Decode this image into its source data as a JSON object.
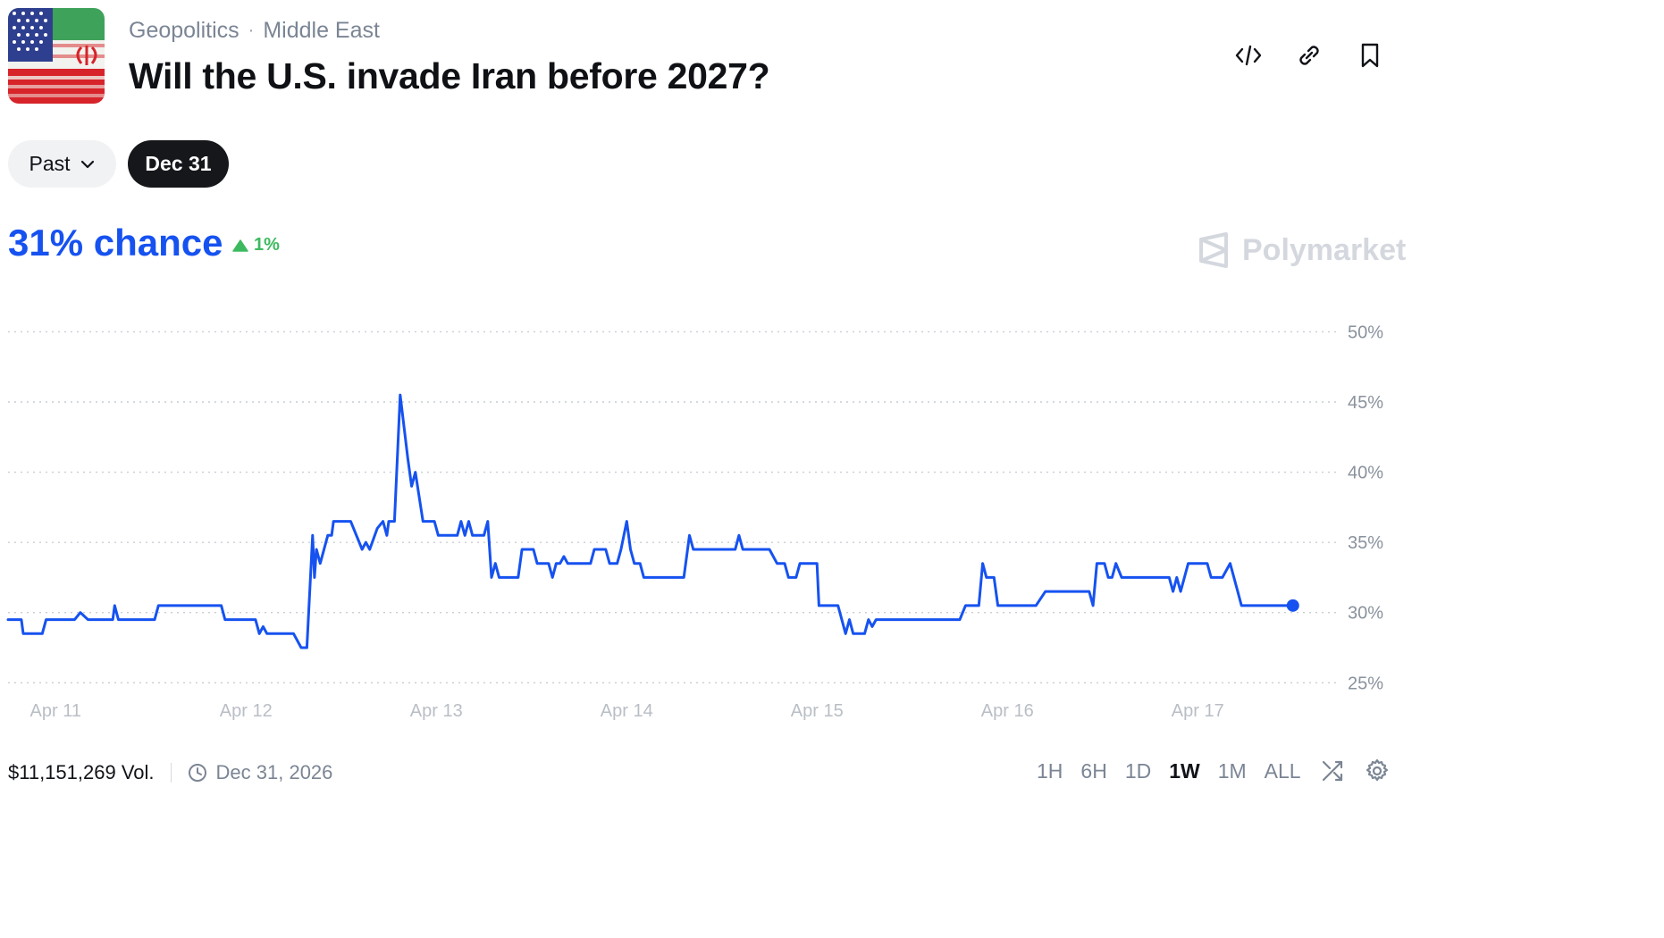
{
  "header": {
    "breadcrumb": [
      "Geopolitics",
      "Middle East"
    ],
    "breadcrumb_separator": "·",
    "title": "Will the U.S. invade Iran before 2027?"
  },
  "actions": [
    {
      "name": "embed-icon"
    },
    {
      "name": "link-icon"
    },
    {
      "name": "bookmark-icon"
    }
  ],
  "filters": {
    "past_label": "Past",
    "date_label": "Dec 31"
  },
  "summary": {
    "chance_text": "31% chance",
    "delta_text": "1%",
    "delta_color": "#3dba5f",
    "accent_color": "#1652f0"
  },
  "brand": {
    "name": "Polymarket"
  },
  "footer": {
    "volume": "$11,151,269 Vol.",
    "end_date": "Dec 31, 2026",
    "ranges": [
      "1H",
      "6H",
      "1D",
      "1W",
      "1M",
      "ALL"
    ],
    "active_range": "1W"
  },
  "chart_data": {
    "type": "line",
    "series": [
      {
        "color": "#1652f0",
        "points": [
          [
            11.0,
            29.5
          ],
          [
            11.07,
            29.5
          ],
          [
            11.08,
            28.5
          ],
          [
            11.18,
            28.5
          ],
          [
            11.2,
            29.5
          ],
          [
            11.35,
            29.5
          ],
          [
            11.38,
            30.0
          ],
          [
            11.42,
            29.5
          ],
          [
            11.55,
            29.5
          ],
          [
            11.56,
            30.5
          ],
          [
            11.58,
            29.5
          ],
          [
            11.77,
            29.5
          ],
          [
            11.79,
            30.5
          ],
          [
            12.0,
            30.5
          ],
          [
            12.12,
            30.5
          ],
          [
            12.14,
            29.5
          ],
          [
            12.3,
            29.5
          ],
          [
            12.32,
            28.5
          ],
          [
            12.34,
            29.0
          ],
          [
            12.36,
            28.5
          ],
          [
            12.5,
            28.5
          ],
          [
            12.54,
            27.5
          ],
          [
            12.57,
            27.5
          ],
          [
            12.6,
            35.5
          ],
          [
            12.61,
            32.5
          ],
          [
            12.62,
            34.5
          ],
          [
            12.64,
            33.5
          ],
          [
            12.68,
            35.5
          ],
          [
            12.7,
            35.5
          ],
          [
            12.71,
            36.5
          ],
          [
            12.8,
            36.5
          ],
          [
            12.86,
            34.5
          ],
          [
            12.88,
            35.0
          ],
          [
            12.9,
            34.5
          ],
          [
            12.94,
            36.0
          ],
          [
            12.97,
            36.5
          ],
          [
            12.99,
            35.5
          ],
          [
            13.0,
            36.5
          ],
          [
            13.03,
            36.5
          ],
          [
            13.06,
            45.5
          ],
          [
            13.1,
            41.0
          ],
          [
            13.12,
            39.0
          ],
          [
            13.14,
            40.0
          ],
          [
            13.18,
            36.5
          ],
          [
            13.24,
            36.5
          ],
          [
            13.26,
            35.5
          ],
          [
            13.36,
            35.5
          ],
          [
            13.38,
            36.5
          ],
          [
            13.4,
            35.5
          ],
          [
            13.42,
            36.5
          ],
          [
            13.44,
            35.5
          ],
          [
            13.5,
            35.5
          ],
          [
            13.52,
            36.5
          ],
          [
            13.54,
            32.5
          ],
          [
            13.56,
            33.5
          ],
          [
            13.58,
            32.5
          ],
          [
            13.68,
            32.5
          ],
          [
            13.7,
            34.5
          ],
          [
            13.76,
            34.5
          ],
          [
            13.78,
            33.5
          ],
          [
            13.84,
            33.5
          ],
          [
            13.86,
            32.5
          ],
          [
            13.88,
            33.5
          ],
          [
            13.9,
            33.5
          ],
          [
            13.92,
            34.0
          ],
          [
            13.94,
            33.5
          ],
          [
            14.06,
            33.5
          ],
          [
            14.08,
            34.5
          ],
          [
            14.14,
            34.5
          ],
          [
            14.16,
            33.5
          ],
          [
            14.2,
            33.5
          ],
          [
            14.22,
            34.5
          ],
          [
            14.25,
            36.5
          ],
          [
            14.27,
            34.5
          ],
          [
            14.29,
            33.5
          ],
          [
            14.32,
            33.5
          ],
          [
            14.34,
            32.5
          ],
          [
            14.55,
            32.5
          ],
          [
            14.58,
            35.5
          ],
          [
            14.6,
            34.5
          ],
          [
            14.82,
            34.5
          ],
          [
            14.84,
            35.5
          ],
          [
            14.86,
            34.5
          ],
          [
            15.0,
            34.5
          ],
          [
            15.04,
            33.5
          ],
          [
            15.08,
            33.5
          ],
          [
            15.1,
            32.5
          ],
          [
            15.14,
            32.5
          ],
          [
            15.16,
            33.5
          ],
          [
            15.25,
            33.5
          ],
          [
            15.26,
            30.5
          ],
          [
            15.36,
            30.5
          ],
          [
            15.4,
            28.5
          ],
          [
            15.42,
            29.5
          ],
          [
            15.44,
            28.5
          ],
          [
            15.5,
            28.5
          ],
          [
            15.52,
            29.5
          ],
          [
            15.54,
            29.0
          ],
          [
            15.56,
            29.5
          ],
          [
            16.0,
            29.5
          ],
          [
            16.03,
            30.5
          ],
          [
            16.1,
            30.5
          ],
          [
            16.12,
            33.5
          ],
          [
            16.14,
            32.5
          ],
          [
            16.18,
            32.5
          ],
          [
            16.2,
            30.5
          ],
          [
            16.4,
            30.5
          ],
          [
            16.45,
            31.5
          ],
          [
            16.68,
            31.5
          ],
          [
            16.7,
            30.5
          ],
          [
            16.72,
            33.5
          ],
          [
            16.76,
            33.5
          ],
          [
            16.78,
            32.5
          ],
          [
            16.8,
            32.5
          ],
          [
            16.82,
            33.5
          ],
          [
            16.85,
            32.5
          ],
          [
            17.1,
            32.5
          ],
          [
            17.12,
            31.5
          ],
          [
            17.14,
            32.5
          ],
          [
            17.16,
            31.5
          ],
          [
            17.2,
            33.5
          ],
          [
            17.3,
            33.5
          ],
          [
            17.32,
            32.5
          ],
          [
            17.38,
            32.5
          ],
          [
            17.42,
            33.5
          ],
          [
            17.46,
            31.5
          ],
          [
            17.48,
            30.5
          ],
          [
            17.75,
            30.5
          ]
        ]
      }
    ],
    "x_ticks": [
      "Apr 11",
      "Apr 12",
      "Apr 13",
      "Apr 14",
      "Apr 15",
      "Apr 16",
      "Apr 17"
    ],
    "x_tick_values": [
      11.25,
      12.25,
      13.25,
      14.25,
      15.25,
      16.25,
      17.25
    ],
    "xlim": [
      11.0,
      18.0
    ],
    "y_ticks": [
      "50%",
      "45%",
      "40%",
      "35%",
      "30%",
      "25%"
    ],
    "y_tick_values": [
      50,
      45,
      40,
      35,
      30,
      25
    ],
    "ylim": [
      24,
      52
    ],
    "grid": true,
    "end_marker": true
  }
}
